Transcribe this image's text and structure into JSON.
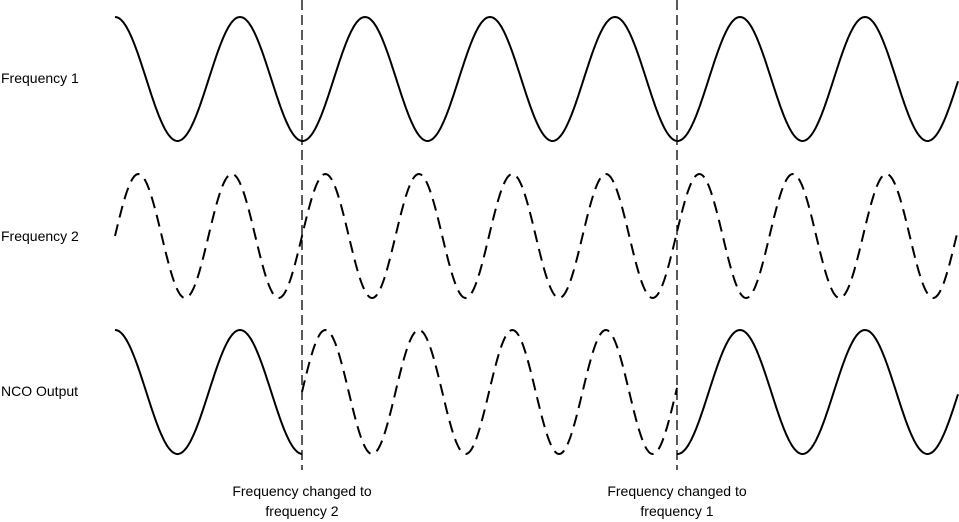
{
  "rows": [
    {
      "label": "Frequency 1"
    },
    {
      "label": "Frequency 2"
    },
    {
      "label": "NCO Output"
    }
  ],
  "captions": [
    {
      "line1": "Frequency changed to",
      "line2": "frequency 2"
    },
    {
      "line1": "Frequency changed to",
      "line2": "frequency 1"
    }
  ],
  "colors": {
    "stroke": "#000000",
    "background": "#ffffff"
  }
}
